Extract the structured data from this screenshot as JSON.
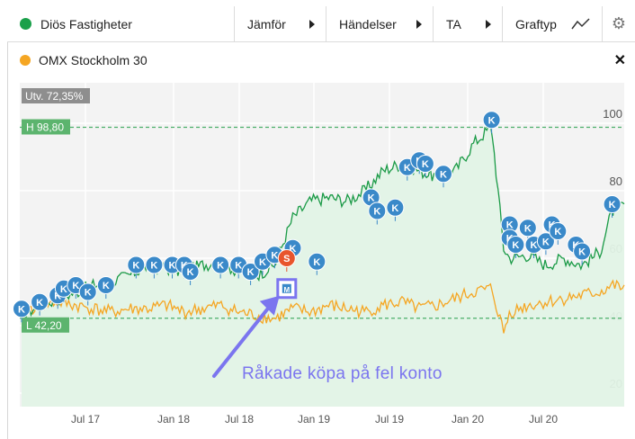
{
  "toolbar": {
    "instrument": "Diös Fastigheter",
    "instrument_color": "#1aa04a",
    "compare": "Jämför",
    "events": "Händelser",
    "ta": "TA",
    "graph_type": "Graftyp",
    "settings_icon": "gear-icon"
  },
  "comparison": {
    "name": "OMX Stockholm 30",
    "color": "#f5a623",
    "close_icon": "close-icon"
  },
  "chart_data": {
    "type": "line",
    "x_ticks": [
      "Jul 17",
      "Jan 18",
      "Jul 18",
      "Jan 19",
      "Jul 19",
      "Jan 20",
      "Jul 20"
    ],
    "y_ticks": [
      20,
      40,
      60,
      80,
      100
    ],
    "ylim": [
      16,
      112
    ],
    "change_label": "Utv. 72,35%",
    "high_label": "H 98,80",
    "high_value": 98.8,
    "low_label": "L 42,20",
    "low_value": 42.2,
    "series": [
      {
        "name": "Diös Fastigheter",
        "color": "#1a9a46",
        "x": [
          0,
          0.03,
          0.06,
          0.09,
          0.12,
          0.15,
          0.18,
          0.21,
          0.24,
          0.27,
          0.3,
          0.33,
          0.36,
          0.39,
          0.42,
          0.45,
          0.48,
          0.51,
          0.54,
          0.57,
          0.6,
          0.63,
          0.66,
          0.69,
          0.72,
          0.75,
          0.78,
          0.8,
          0.81,
          0.84,
          0.87,
          0.9,
          0.93,
          0.96,
          0.98,
          1.0
        ],
        "values": [
          43,
          46,
          48,
          50,
          52,
          53,
          55,
          58,
          57,
          56,
          58,
          59,
          56,
          55,
          58,
          72,
          77,
          78,
          77,
          80,
          86,
          88,
          86,
          84,
          86,
          94,
          99,
          63,
          60,
          61,
          58,
          60,
          58,
          62,
          74,
          76
        ]
      },
      {
        "name": "OMX Stockholm 30",
        "color": "#f5a623",
        "x": [
          0,
          0.03,
          0.06,
          0.09,
          0.12,
          0.15,
          0.18,
          0.21,
          0.24,
          0.27,
          0.3,
          0.33,
          0.36,
          0.39,
          0.42,
          0.45,
          0.48,
          0.51,
          0.54,
          0.57,
          0.6,
          0.63,
          0.66,
          0.69,
          0.72,
          0.75,
          0.78,
          0.8,
          0.81,
          0.84,
          0.87,
          0.9,
          0.93,
          0.96,
          0.98,
          1.0
        ],
        "values": [
          44,
          46,
          47,
          46,
          45,
          44,
          45,
          45,
          46,
          44,
          45,
          46,
          44,
          43,
          42,
          45,
          44,
          46,
          45,
          44,
          46,
          47,
          45,
          46,
          48,
          50,
          51,
          38,
          44,
          46,
          47,
          48,
          49,
          50,
          52,
          51
        ]
      }
    ]
  },
  "events": {
    "marker_label": "K",
    "special_label": "S",
    "marker_color": "#3a89c9",
    "special_color": "#e8552c",
    "markers": [
      {
        "x": 0.0,
        "v": 45
      },
      {
        "x": 0.03,
        "v": 47
      },
      {
        "x": 0.06,
        "v": 49
      },
      {
        "x": 0.07,
        "v": 51
      },
      {
        "x": 0.09,
        "v": 52
      },
      {
        "x": 0.11,
        "v": 50
      },
      {
        "x": 0.14,
        "v": 52
      },
      {
        "x": 0.19,
        "v": 58
      },
      {
        "x": 0.22,
        "v": 58
      },
      {
        "x": 0.25,
        "v": 58
      },
      {
        "x": 0.27,
        "v": 58
      },
      {
        "x": 0.28,
        "v": 56
      },
      {
        "x": 0.33,
        "v": 58
      },
      {
        "x": 0.36,
        "v": 58
      },
      {
        "x": 0.38,
        "v": 56
      },
      {
        "x": 0.4,
        "v": 59
      },
      {
        "x": 0.42,
        "v": 61
      },
      {
        "x": 0.45,
        "v": 63
      },
      {
        "x": 0.49,
        "v": 59
      },
      {
        "x": 0.58,
        "v": 78
      },
      {
        "x": 0.59,
        "v": 74
      },
      {
        "x": 0.62,
        "v": 75
      },
      {
        "x": 0.64,
        "v": 87
      },
      {
        "x": 0.66,
        "v": 89
      },
      {
        "x": 0.67,
        "v": 88
      },
      {
        "x": 0.7,
        "v": 85
      },
      {
        "x": 0.78,
        "v": 101
      },
      {
        "x": 0.81,
        "v": 70
      },
      {
        "x": 0.81,
        "v": 66
      },
      {
        "x": 0.82,
        "v": 64
      },
      {
        "x": 0.84,
        "v": 69
      },
      {
        "x": 0.85,
        "v": 64
      },
      {
        "x": 0.87,
        "v": 65
      },
      {
        "x": 0.88,
        "v": 70
      },
      {
        "x": 0.89,
        "v": 68
      },
      {
        "x": 0.92,
        "v": 64
      },
      {
        "x": 0.93,
        "v": 62
      },
      {
        "x": 0.98,
        "v": 76
      }
    ],
    "special": {
      "x": 0.44,
      "v": 60
    },
    "highlight": {
      "x": 0.44,
      "v": 51,
      "label": "M"
    }
  },
  "annotation": {
    "text": "Råkade köpa på fel konto",
    "color": "#7b75ef"
  }
}
